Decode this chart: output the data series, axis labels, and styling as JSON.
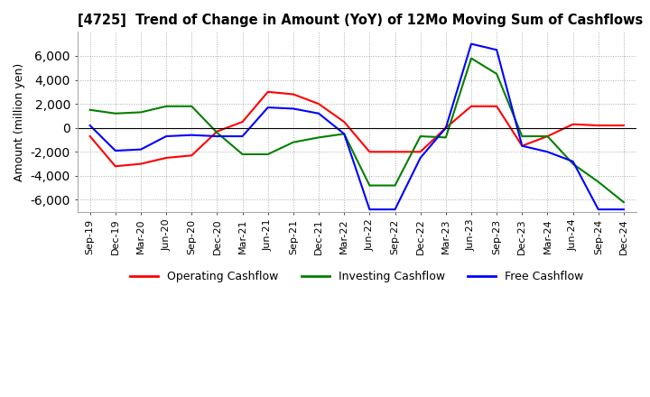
{
  "title": "[4725]  Trend of Change in Amount (YoY) of 12Mo Moving Sum of Cashflows",
  "ylabel": "Amount (million yen)",
  "ylim": [
    -7000,
    8000
  ],
  "yticks": [
    -6000,
    -4000,
    -2000,
    0,
    2000,
    4000,
    6000
  ],
  "x_labels": [
    "Sep-19",
    "Dec-19",
    "Mar-20",
    "Jun-20",
    "Sep-20",
    "Dec-20",
    "Mar-21",
    "Jun-21",
    "Sep-21",
    "Dec-21",
    "Mar-22",
    "Jun-22",
    "Sep-22",
    "Dec-22",
    "Mar-23",
    "Jun-23",
    "Sep-23",
    "Dec-23",
    "Mar-24",
    "Jun-24",
    "Sep-24",
    "Dec-24"
  ],
  "operating": [
    -700,
    -3200,
    -3000,
    -2500,
    -2300,
    -300,
    500,
    3000,
    2800,
    2000,
    500,
    -2000,
    -2000,
    -2000,
    0,
    1800,
    1800,
    -1500,
    -700,
    300,
    200,
    200
  ],
  "investing": [
    1500,
    1200,
    1300,
    1800,
    1800,
    -400,
    -2200,
    -2200,
    -1200,
    -800,
    -500,
    -4800,
    -4800,
    -700,
    -800,
    5800,
    4500,
    -700,
    -700,
    -3000,
    -4500,
    -6200
  ],
  "free": [
    200,
    -1900,
    -1800,
    -700,
    -600,
    -700,
    -700,
    1700,
    1600,
    1200,
    -500,
    -6800,
    -6800,
    -2500,
    0,
    7000,
    6500,
    -1500,
    -2000,
    -2800,
    -6800,
    -6800
  ],
  "operating_color": "#ff0000",
  "investing_color": "#008000",
  "free_color": "#0000ff",
  "background_color": "#ffffff",
  "grid_color": "#aaaaaa"
}
